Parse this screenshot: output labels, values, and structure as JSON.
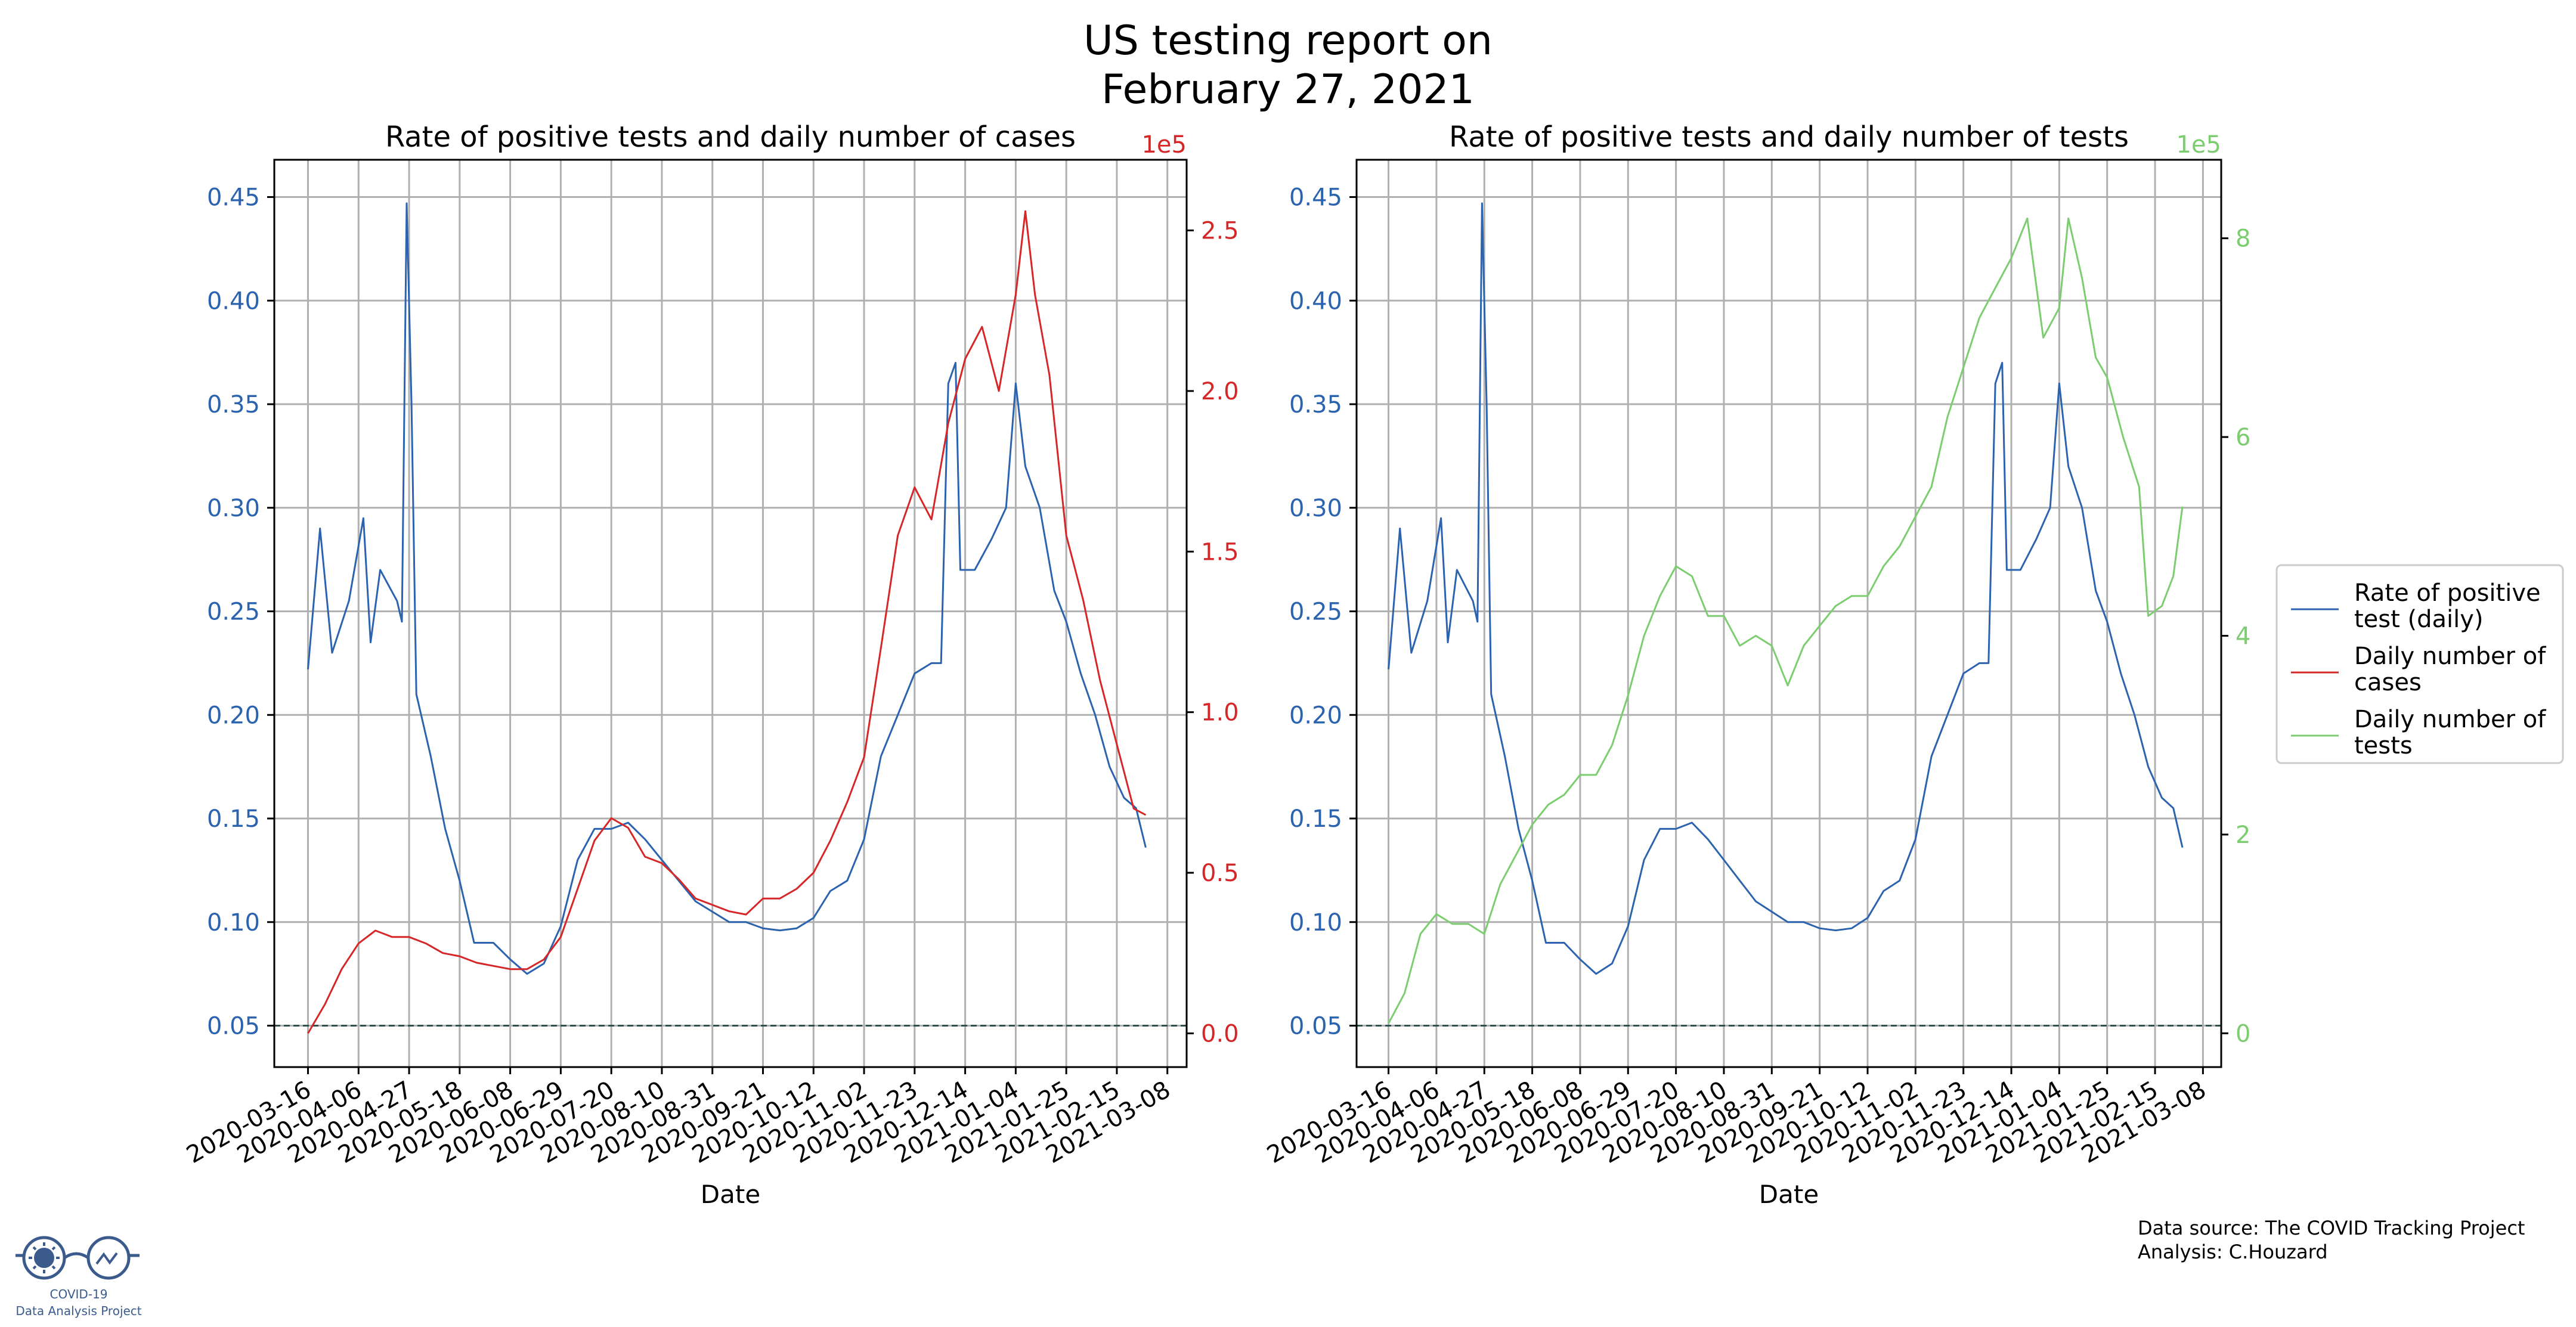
{
  "figure": {
    "title_line1": "US testing report on",
    "title_line2": "February 27, 2021",
    "source_line1": "Data source: The COVID Tracking Project",
    "source_line2": "Analysis: C.Houzard",
    "logo_line1": "COVID-19",
    "logo_line2": "Data Analysis Project"
  },
  "colors": {
    "rate": "#2b63ae",
    "cases": "#d62728",
    "tests": "#7ccd6f",
    "reference": "#2f4f4f",
    "grid": "#b0b0b0"
  },
  "legend": {
    "items": [
      {
        "key": "rate",
        "line1": "Rate of positive",
        "line2": "test (daily)"
      },
      {
        "key": "cases",
        "line1": "Daily number of",
        "line2": "cases"
      },
      {
        "key": "tests",
        "line1": "Daily number of",
        "line2": "tests"
      }
    ],
    "placement": "right-outside"
  },
  "chart_data": [
    {
      "type": "line",
      "title": "Rate of positive tests and daily number of cases",
      "xlabel": "Date",
      "x_ticks": [
        "2020-03-16",
        "2020-04-06",
        "2020-04-27",
        "2020-05-18",
        "2020-06-08",
        "2020-06-29",
        "2020-07-20",
        "2020-08-10",
        "2020-08-31",
        "2020-09-21",
        "2020-10-12",
        "2020-11-02",
        "2020-11-23",
        "2020-12-14",
        "2021-01-04",
        "2021-01-25",
        "2021-02-15",
        "2021-03-08"
      ],
      "xlim": [
        "2020-03-02",
        "2021-03-16"
      ],
      "y_left": {
        "ylim": [
          0.03,
          0.468
        ],
        "ticks": [
          "0.05",
          "0.10",
          "0.15",
          "0.20",
          "0.25",
          "0.30",
          "0.35",
          "0.40",
          "0.45"
        ]
      },
      "y_right": {
        "ylim": [
          -0.105,
          2.72
        ],
        "ticks": [
          "0.0",
          "0.5",
          "1.0",
          "1.5",
          "2.0",
          "2.5"
        ],
        "offset_label": "1e5"
      },
      "reference_line": 0.05,
      "grid": true,
      "series": [
        {
          "name": "Rate of positive test (daily)",
          "axis": "left",
          "color_key": "rate",
          "points": [
            [
              "2020-03-16",
              0.222
            ],
            [
              "2020-03-21",
              0.29
            ],
            [
              "2020-03-26",
              0.23
            ],
            [
              "2020-04-02",
              0.255
            ],
            [
              "2020-04-08",
              0.295
            ],
            [
              "2020-04-11",
              0.235
            ],
            [
              "2020-04-15",
              0.27
            ],
            [
              "2020-04-22",
              0.255
            ],
            [
              "2020-04-24",
              0.245
            ],
            [
              "2020-04-26",
              0.447
            ],
            [
              "2020-04-28",
              0.35
            ],
            [
              "2020-04-30",
              0.21
            ],
            [
              "2020-05-06",
              0.18
            ],
            [
              "2020-05-12",
              0.145
            ],
            [
              "2020-05-18",
              0.12
            ],
            [
              "2020-05-24",
              0.09
            ],
            [
              "2020-06-01",
              0.09
            ],
            [
              "2020-06-08",
              0.082
            ],
            [
              "2020-06-15",
              0.075
            ],
            [
              "2020-06-22",
              0.08
            ],
            [
              "2020-06-29",
              0.098
            ],
            [
              "2020-07-06",
              0.13
            ],
            [
              "2020-07-13",
              0.145
            ],
            [
              "2020-07-20",
              0.145
            ],
            [
              "2020-07-27",
              0.148
            ],
            [
              "2020-08-03",
              0.14
            ],
            [
              "2020-08-10",
              0.13
            ],
            [
              "2020-08-17",
              0.12
            ],
            [
              "2020-08-24",
              0.11
            ],
            [
              "2020-08-31",
              0.105
            ],
            [
              "2020-09-07",
              0.1
            ],
            [
              "2020-09-14",
              0.1
            ],
            [
              "2020-09-21",
              0.097
            ],
            [
              "2020-09-28",
              0.096
            ],
            [
              "2020-10-05",
              0.097
            ],
            [
              "2020-10-12",
              0.102
            ],
            [
              "2020-10-19",
              0.115
            ],
            [
              "2020-10-26",
              0.12
            ],
            [
              "2020-11-02",
              0.14
            ],
            [
              "2020-11-09",
              0.18
            ],
            [
              "2020-11-16",
              0.2
            ],
            [
              "2020-11-23",
              0.22
            ],
            [
              "2020-11-30",
              0.225
            ],
            [
              "2020-12-04",
              0.225
            ],
            [
              "2020-12-07",
              0.36
            ],
            [
              "2020-12-10",
              0.37
            ],
            [
              "2020-12-12",
              0.27
            ],
            [
              "2020-12-18",
              0.27
            ],
            [
              "2020-12-25",
              0.285
            ],
            [
              "2020-12-31",
              0.3
            ],
            [
              "2021-01-04",
              0.36
            ],
            [
              "2021-01-08",
              0.32
            ],
            [
              "2021-01-14",
              0.3
            ],
            [
              "2021-01-20",
              0.26
            ],
            [
              "2021-01-25",
              0.245
            ],
            [
              "2021-01-31",
              0.22
            ],
            [
              "2021-02-06",
              0.2
            ],
            [
              "2021-02-12",
              0.175
            ],
            [
              "2021-02-18",
              0.16
            ],
            [
              "2021-02-23",
              0.155
            ],
            [
              "2021-02-27",
              0.136
            ]
          ]
        },
        {
          "name": "Daily number of cases",
          "axis": "right",
          "color_key": "cases",
          "points": [
            [
              "2020-03-16",
              0.0
            ],
            [
              "2020-03-23",
              0.09
            ],
            [
              "2020-03-30",
              0.2
            ],
            [
              "2020-04-06",
              0.28
            ],
            [
              "2020-04-13",
              0.32
            ],
            [
              "2020-04-20",
              0.3
            ],
            [
              "2020-04-27",
              0.3
            ],
            [
              "2020-05-04",
              0.28
            ],
            [
              "2020-05-11",
              0.25
            ],
            [
              "2020-05-18",
              0.24
            ],
            [
              "2020-05-25",
              0.22
            ],
            [
              "2020-06-01",
              0.21
            ],
            [
              "2020-06-08",
              0.2
            ],
            [
              "2020-06-15",
              0.2
            ],
            [
              "2020-06-22",
              0.23
            ],
            [
              "2020-06-29",
              0.3
            ],
            [
              "2020-07-06",
              0.45
            ],
            [
              "2020-07-13",
              0.6
            ],
            [
              "2020-07-20",
              0.67
            ],
            [
              "2020-07-27",
              0.64
            ],
            [
              "2020-08-03",
              0.55
            ],
            [
              "2020-08-10",
              0.53
            ],
            [
              "2020-08-17",
              0.48
            ],
            [
              "2020-08-24",
              0.42
            ],
            [
              "2020-08-31",
              0.4
            ],
            [
              "2020-09-07",
              0.38
            ],
            [
              "2020-09-14",
              0.37
            ],
            [
              "2020-09-21",
              0.42
            ],
            [
              "2020-09-28",
              0.42
            ],
            [
              "2020-10-05",
              0.45
            ],
            [
              "2020-10-12",
              0.5
            ],
            [
              "2020-10-19",
              0.6
            ],
            [
              "2020-10-26",
              0.72
            ],
            [
              "2020-11-02",
              0.86
            ],
            [
              "2020-11-09",
              1.2
            ],
            [
              "2020-11-16",
              1.55
            ],
            [
              "2020-11-23",
              1.7
            ],
            [
              "2020-11-30",
              1.6
            ],
            [
              "2020-12-07",
              1.9
            ],
            [
              "2020-12-14",
              2.1
            ],
            [
              "2020-12-21",
              2.2
            ],
            [
              "2020-12-28",
              2.0
            ],
            [
              "2021-01-04",
              2.3
            ],
            [
              "2021-01-08",
              2.56
            ],
            [
              "2021-01-12",
              2.3
            ],
            [
              "2021-01-18",
              2.05
            ],
            [
              "2021-01-25",
              1.55
            ],
            [
              "2021-02-01",
              1.35
            ],
            [
              "2021-02-08",
              1.1
            ],
            [
              "2021-02-15",
              0.9
            ],
            [
              "2021-02-22",
              0.7
            ],
            [
              "2021-02-27",
              0.68
            ]
          ]
        }
      ]
    },
    {
      "type": "line",
      "title": "Rate of positive tests and daily number of tests",
      "xlabel": "Date",
      "x_ticks": [
        "2020-03-16",
        "2020-04-06",
        "2020-04-27",
        "2020-05-18",
        "2020-06-08",
        "2020-06-29",
        "2020-07-20",
        "2020-08-10",
        "2020-08-31",
        "2020-09-21",
        "2020-10-12",
        "2020-11-02",
        "2020-11-23",
        "2020-12-14",
        "2021-01-04",
        "2021-01-25",
        "2021-02-15",
        "2021-03-08"
      ],
      "xlim": [
        "2020-03-02",
        "2021-03-16"
      ],
      "y_left": {
        "ylim": [
          0.03,
          0.468
        ],
        "ticks": [
          "0.05",
          "0.10",
          "0.15",
          "0.20",
          "0.25",
          "0.30",
          "0.35",
          "0.40",
          "0.45"
        ]
      },
      "y_right": {
        "ylim": [
          -0.34,
          8.79
        ],
        "ticks": [
          "0",
          "2",
          "4",
          "6",
          "8"
        ],
        "offset_label": "1e5"
      },
      "reference_line": 0.05,
      "grid": true,
      "series": [
        {
          "name": "Rate of positive test (daily)",
          "axis": "left",
          "color_key": "rate",
          "same_as": "chart_data.0.series.0"
        },
        {
          "name": "Daily number of tests",
          "axis": "right",
          "color_key": "tests",
          "points": [
            [
              "2020-03-16",
              0.1
            ],
            [
              "2020-03-23",
              0.4
            ],
            [
              "2020-03-30",
              1.0
            ],
            [
              "2020-04-06",
              1.2
            ],
            [
              "2020-04-13",
              1.1
            ],
            [
              "2020-04-20",
              1.1
            ],
            [
              "2020-04-27",
              1.0
            ],
            [
              "2020-05-04",
              1.5
            ],
            [
              "2020-05-11",
              1.8
            ],
            [
              "2020-05-18",
              2.1
            ],
            [
              "2020-05-25",
              2.3
            ],
            [
              "2020-06-01",
              2.4
            ],
            [
              "2020-06-08",
              2.6
            ],
            [
              "2020-06-15",
              2.6
            ],
            [
              "2020-06-22",
              2.9
            ],
            [
              "2020-06-29",
              3.4
            ],
            [
              "2020-07-06",
              4.0
            ],
            [
              "2020-07-13",
              4.4
            ],
            [
              "2020-07-20",
              4.7
            ],
            [
              "2020-07-27",
              4.6
            ],
            [
              "2020-08-03",
              4.2
            ],
            [
              "2020-08-10",
              4.2
            ],
            [
              "2020-08-17",
              3.9
            ],
            [
              "2020-08-24",
              4.0
            ],
            [
              "2020-08-31",
              3.9
            ],
            [
              "2020-09-07",
              3.5
            ],
            [
              "2020-09-14",
              3.9
            ],
            [
              "2020-09-21",
              4.1
            ],
            [
              "2020-09-28",
              4.3
            ],
            [
              "2020-10-05",
              4.4
            ],
            [
              "2020-10-12",
              4.4
            ],
            [
              "2020-10-19",
              4.7
            ],
            [
              "2020-10-26",
              4.9
            ],
            [
              "2020-11-02",
              5.2
            ],
            [
              "2020-11-09",
              5.5
            ],
            [
              "2020-11-16",
              6.2
            ],
            [
              "2020-11-23",
              6.7
            ],
            [
              "2020-11-30",
              7.2
            ],
            [
              "2020-12-07",
              7.5
            ],
            [
              "2020-12-14",
              7.8
            ],
            [
              "2020-12-21",
              8.2
            ],
            [
              "2020-12-28",
              7.0
            ],
            [
              "2021-01-04",
              7.3
            ],
            [
              "2021-01-08",
              8.2
            ],
            [
              "2021-01-14",
              7.6
            ],
            [
              "2021-01-20",
              6.8
            ],
            [
              "2021-01-25",
              6.6
            ],
            [
              "2021-02-01",
              6.0
            ],
            [
              "2021-02-08",
              5.5
            ],
            [
              "2021-02-12",
              4.2
            ],
            [
              "2021-02-18",
              4.3
            ],
            [
              "2021-02-23",
              4.6
            ],
            [
              "2021-02-27",
              5.3
            ]
          ]
        }
      ]
    }
  ]
}
